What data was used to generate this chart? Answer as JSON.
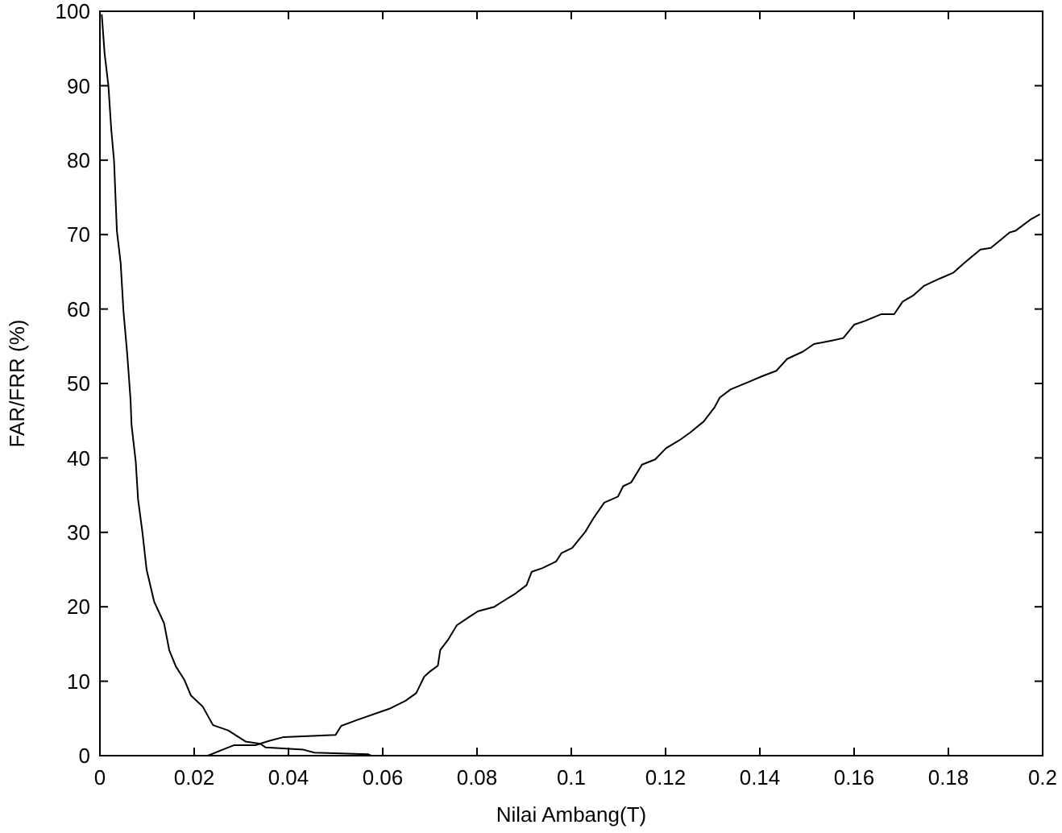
{
  "chart_data": {
    "type": "line",
    "xlabel": "Nilai Ambang(T)",
    "ylabel": "FAR/FRR (%)",
    "xlim": [
      0,
      0.2
    ],
    "xticks": [
      0,
      0.02,
      0.04,
      0.06,
      0.08,
      0.1,
      0.12,
      0.14,
      0.16,
      0.18,
      0.2
    ],
    "ylim": [
      0,
      100
    ],
    "yticks": [
      0,
      10,
      20,
      30,
      40,
      50,
      60,
      70,
      80,
      90,
      100
    ],
    "series": [
      {
        "color": "#000000",
        "x": [
          0.0004,
          0.001,
          0.0018,
          0.0024,
          0.003,
          0.0036,
          0.0044,
          0.005,
          0.0058,
          0.0065,
          0.0067,
          0.0076,
          0.0081,
          0.009,
          0.0099,
          0.0115,
          0.0136,
          0.0147,
          0.0161,
          0.0179,
          0.0193,
          0.0218,
          0.024,
          0.0272,
          0.0309,
          0.034,
          0.0352,
          0.0432,
          0.0455,
          0.0569,
          0.0575,
          0.0816
        ],
        "values": [
          99.5,
          94.3,
          90,
          84.2,
          79.9,
          70.5,
          66.2,
          59.7,
          53.9,
          47.8,
          44.5,
          39.5,
          34.4,
          30.1,
          25.0,
          20.7,
          17.8,
          14.2,
          12.0,
          10.2,
          8.1,
          6.6,
          4.1,
          3.4,
          1.9,
          1.6,
          1.1,
          0.8,
          0.4,
          0.2,
          0,
          0
        ]
      },
      {
        "color": "#000000",
        "x": [
          0.0087,
          0.0229,
          0.026,
          0.0284,
          0.033,
          0.036,
          0.039,
          0.05,
          0.0512,
          0.0546,
          0.0614,
          0.0649,
          0.0671,
          0.0688,
          0.07,
          0.0717,
          0.0722,
          0.0739,
          0.0757,
          0.078,
          0.0802,
          0.0837,
          0.0854,
          0.0882,
          0.0905,
          0.0916,
          0.0939,
          0.0968,
          0.0979,
          0.1002,
          0.103,
          0.1047,
          0.107,
          0.1099,
          0.111,
          0.1127,
          0.115,
          0.1178,
          0.1201,
          0.123,
          0.1252,
          0.1281,
          0.1304,
          0.1315,
          0.1338,
          0.1372,
          0.1406,
          0.1435,
          0.1458,
          0.1492,
          0.1515,
          0.1555,
          0.1577,
          0.16,
          0.1623,
          0.1657,
          0.1685,
          0.1703,
          0.1725,
          0.1748,
          0.1782,
          0.1811,
          0.1834,
          0.1868,
          0.189,
          0.1913,
          0.193,
          0.1942,
          0.1976,
          0.1993
        ],
        "values": [
          0,
          0,
          0.8,
          1.4,
          1.4,
          2.0,
          2.5,
          2.8,
          4.0,
          4.8,
          6.3,
          7.4,
          8.4,
          10.6,
          11.3,
          12.1,
          14.2,
          15.6,
          17.5,
          18.5,
          19.4,
          20.0,
          20.7,
          21.8,
          22.9,
          24.7,
          25.2,
          26.1,
          27.2,
          27.9,
          30.1,
          31.9,
          34.0,
          34.8,
          36.2,
          36.7,
          39.1,
          39.8,
          41.3,
          42.4,
          43.4,
          44.9,
          46.8,
          48.1,
          49.2,
          50.1,
          51.0,
          51.7,
          53.3,
          54.3,
          55.3,
          55.8,
          56.1,
          57.9,
          58.4,
          59.3,
          59.3,
          61.0,
          61.8,
          63.1,
          64.1,
          64.9,
          66.2,
          68.0,
          68.2,
          69.4,
          70.3,
          70.5,
          72.1,
          72.7
        ]
      }
    ]
  }
}
